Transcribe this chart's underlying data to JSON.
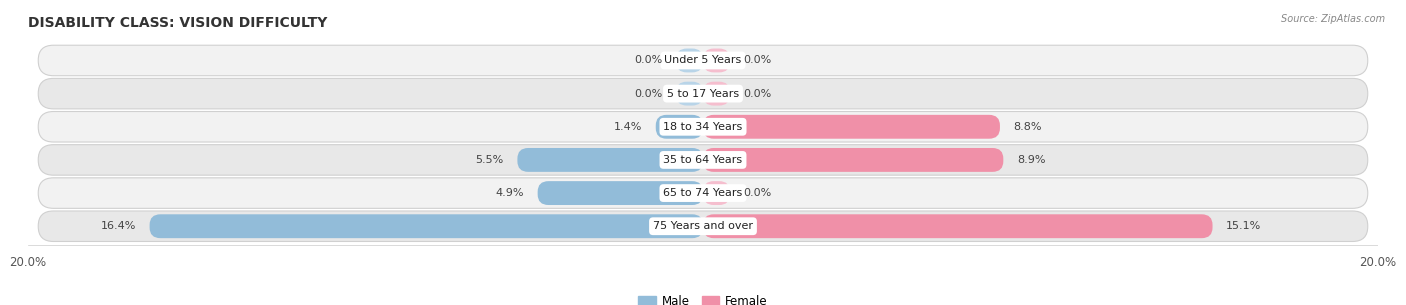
{
  "title": "DISABILITY CLASS: VISION DIFFICULTY",
  "source": "Source: ZipAtlas.com",
  "categories": [
    "Under 5 Years",
    "5 to 17 Years",
    "18 to 34 Years",
    "35 to 64 Years",
    "65 to 74 Years",
    "75 Years and over"
  ],
  "male_values": [
    0.0,
    0.0,
    1.4,
    5.5,
    4.9,
    16.4
  ],
  "female_values": [
    0.0,
    0.0,
    8.8,
    8.9,
    0.0,
    15.1
  ],
  "male_color": "#92bcd9",
  "female_color": "#f090a8",
  "male_color_zero": "#b8d4e8",
  "female_color_zero": "#f5bece",
  "row_bg_color_odd": "#f2f2f2",
  "row_bg_color_even": "#e8e8e8",
  "row_border_color": "#d0d0d0",
  "max_val": 20.0,
  "legend_male": "Male",
  "legend_female": "Female",
  "title_fontsize": 10,
  "label_fontsize": 8,
  "value_fontsize": 8,
  "tick_fontsize": 8.5,
  "background_color": "#ffffff"
}
